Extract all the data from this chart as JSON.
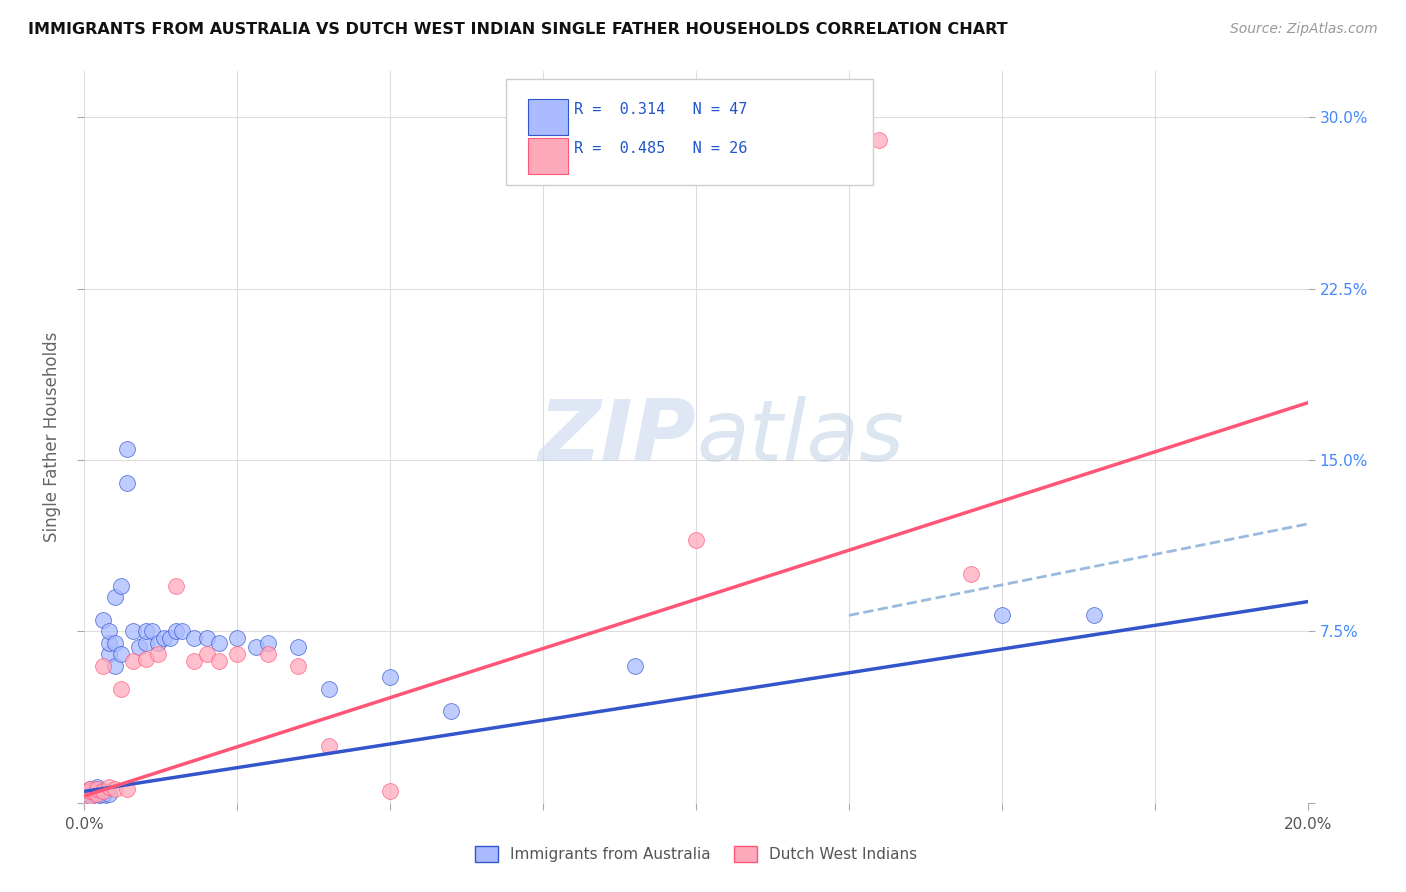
{
  "title": "IMMIGRANTS FROM AUSTRALIA VS DUTCH WEST INDIAN SINGLE FATHER HOUSEHOLDS CORRELATION CHART",
  "source": "Source: ZipAtlas.com",
  "ylabel": "Single Father Households",
  "xlim": [
    0.0,
    0.2
  ],
  "ylim": [
    0.0,
    0.32
  ],
  "color_blue": "#aabbff",
  "color_pink": "#ffaabb",
  "color_line_blue": "#3355cc",
  "color_line_pink": "#ff5577",
  "color_dashed_blue": "#99bbdd",
  "watermark_color": "#ccddf0",
  "legend_label1": "Immigrants from Australia",
  "legend_label2": "Dutch West Indians",
  "blue_line_x": [
    0.0,
    0.2
  ],
  "blue_line_y": [
    0.005,
    0.088
  ],
  "pink_line_x": [
    0.0,
    0.2
  ],
  "pink_line_y": [
    0.003,
    0.175
  ],
  "dashed_line_x": [
    0.125,
    0.2
  ],
  "dashed_line_y": [
    0.082,
    0.122
  ],
  "blue_scatter_x": [
    0.001,
    0.001,
    0.001,
    0.001,
    0.002,
    0.002,
    0.002,
    0.002,
    0.002,
    0.003,
    0.003,
    0.003,
    0.003,
    0.004,
    0.004,
    0.004,
    0.004,
    0.005,
    0.005,
    0.005,
    0.006,
    0.006,
    0.007,
    0.007,
    0.008,
    0.009,
    0.01,
    0.01,
    0.011,
    0.012,
    0.013,
    0.014,
    0.015,
    0.016,
    0.018,
    0.02,
    0.022,
    0.025,
    0.028,
    0.03,
    0.035,
    0.04,
    0.05,
    0.06,
    0.09,
    0.15,
    0.165
  ],
  "blue_scatter_y": [
    0.003,
    0.004,
    0.005,
    0.006,
    0.003,
    0.004,
    0.005,
    0.006,
    0.007,
    0.003,
    0.004,
    0.005,
    0.08,
    0.004,
    0.065,
    0.07,
    0.075,
    0.06,
    0.07,
    0.09,
    0.065,
    0.095,
    0.14,
    0.155,
    0.075,
    0.068,
    0.07,
    0.075,
    0.075,
    0.07,
    0.072,
    0.072,
    0.075,
    0.075,
    0.072,
    0.072,
    0.07,
    0.072,
    0.068,
    0.07,
    0.068,
    0.05,
    0.055,
    0.04,
    0.06,
    0.082,
    0.082
  ],
  "pink_scatter_x": [
    0.001,
    0.001,
    0.001,
    0.002,
    0.002,
    0.003,
    0.003,
    0.004,
    0.005,
    0.006,
    0.007,
    0.008,
    0.01,
    0.012,
    0.015,
    0.018,
    0.02,
    0.022,
    0.025,
    0.03,
    0.035,
    0.04,
    0.05,
    0.1,
    0.13,
    0.145
  ],
  "pink_scatter_y": [
    0.003,
    0.005,
    0.006,
    0.004,
    0.006,
    0.005,
    0.06,
    0.007,
    0.006,
    0.05,
    0.006,
    0.062,
    0.063,
    0.065,
    0.095,
    0.062,
    0.065,
    0.062,
    0.065,
    0.065,
    0.06,
    0.025,
    0.005,
    0.115,
    0.29,
    0.1
  ]
}
